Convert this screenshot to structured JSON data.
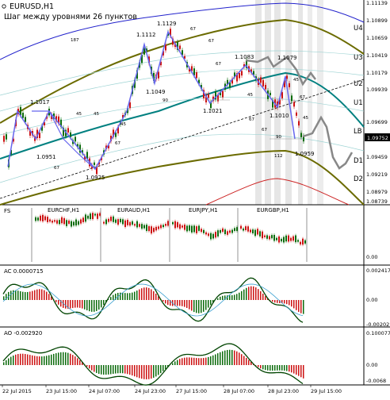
{
  "chart": {
    "symbol": "EURUSD,H1",
    "subtitle": "Шаг между уровнями 26 пунктов",
    "price_labels": [
      "1.11139",
      "1.10899",
      "1.10659",
      "1.10419",
      "1.10179",
      "1.09939",
      "1.09752",
      "1.09699",
      "1.09459",
      "1.09219",
      "1.08979",
      "1.08739"
    ],
    "current_price": "1.09752",
    "levels": [
      {
        "label": "U4"
      },
      {
        "label": "U3"
      },
      {
        "label": "U2"
      },
      {
        "label": "U1"
      },
      {
        "label": "LB"
      },
      {
        "label": "D1"
      },
      {
        "label": "D2"
      }
    ],
    "annotations": [
      {
        "text": "1.1017"
      },
      {
        "text": "1.0951"
      },
      {
        "text": "1.0925"
      },
      {
        "text": "1.1112"
      },
      {
        "text": "1.1129"
      },
      {
        "text": "1.1049"
      },
      {
        "text": "1.1021"
      },
      {
        "text": "1.1083"
      },
      {
        "text": "1.1079"
      },
      {
        "text": "1.1010"
      },
      {
        "text": "1.0959"
      },
      {
        "text": "187"
      },
      {
        "text": "112"
      },
      {
        "text": "90"
      },
      {
        "text": "67"
      },
      {
        "text": "45"
      }
    ]
  },
  "panel_fx": {
    "title": "FS",
    "symbols": [
      "EURCHF,H1",
      "EURAUD,H1",
      "EURJPY,H1",
      "EURGBP,H1"
    ],
    "scale": [
      "0.00"
    ]
  },
  "panel_ac": {
    "title": "AC 0.0000715",
    "scale": [
      "0.002417",
      "0.00",
      "-0.00202"
    ]
  },
  "panel_ao": {
    "title": "AO -0.002920",
    "scale": [
      "0.100077",
      "0.00",
      "-0.0068"
    ]
  },
  "time_axis": [
    "22 Jul 2015",
    "23 Jul 15:00",
    "24 Jul 07:00",
    "24 Jul 23:00",
    "27 Jul 15:00",
    "28 Jul 07:00",
    "28 Jul 23:00",
    "29 Jul 15:00"
  ]
}
